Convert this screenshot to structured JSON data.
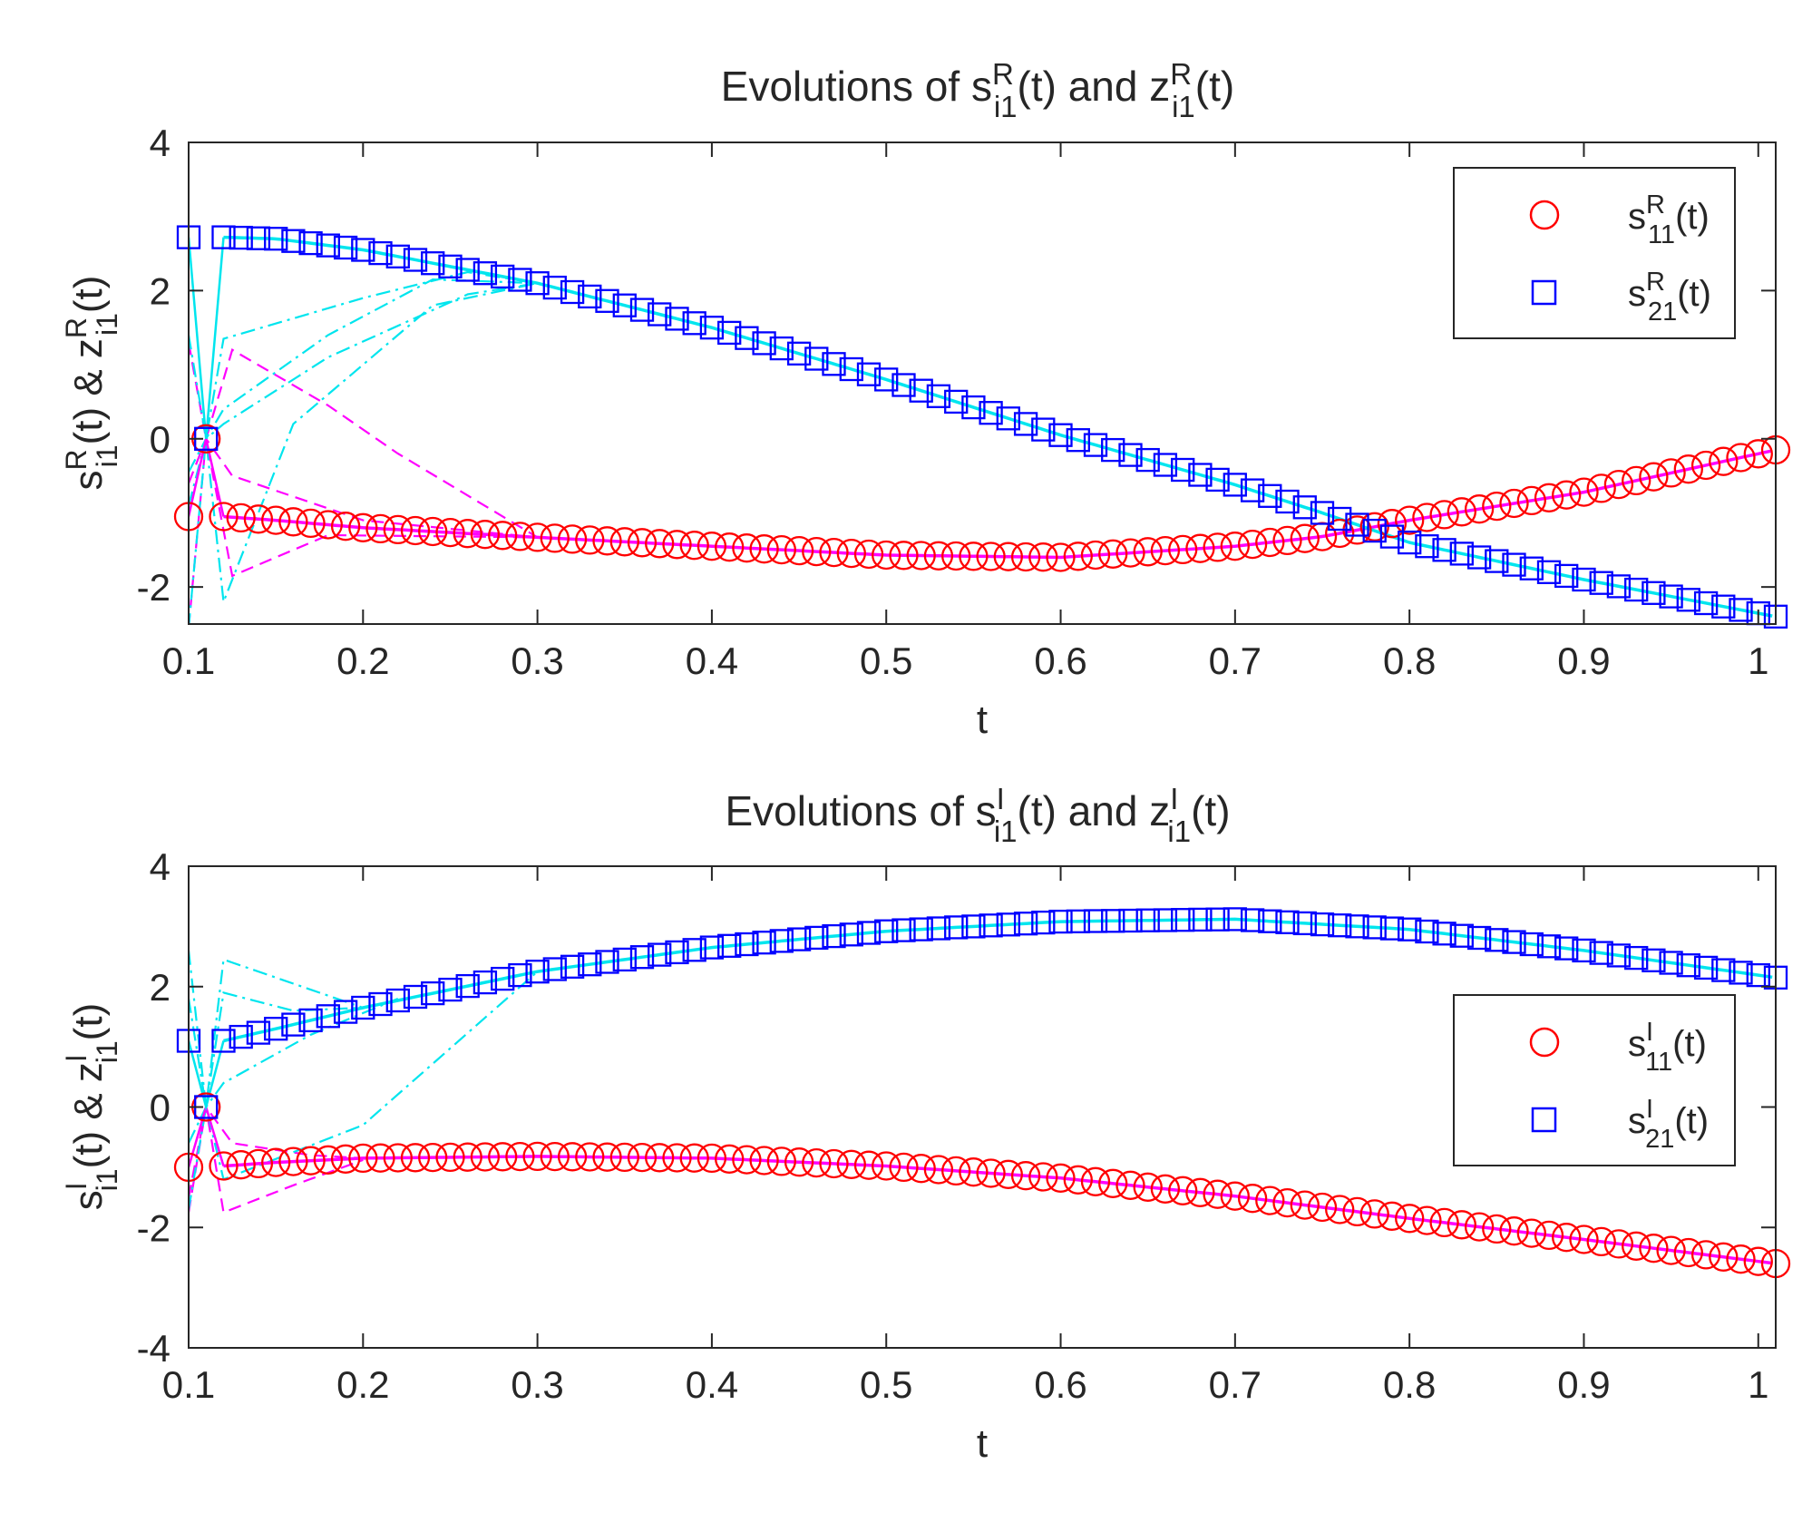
{
  "colors": {
    "s11": "#ff0000",
    "s21": "#0000ff",
    "z_re": "#ff00ff",
    "z_im": "#00e5ee",
    "axis": "#262626"
  },
  "chart_data": [
    {
      "type": "line",
      "title": {
        "prefix": "Evolutions of s",
        "sup1": "R",
        "sub1": "i1",
        "mid": "(t) and z",
        "sup2": "R",
        "sub2": "i1",
        "suffix": "(t)"
      },
      "xlabel": "t",
      "ylabel": {
        "s": "s",
        "sup1": "R",
        "sub1": "i1",
        "mid": "(t) & z",
        "sup2": "R",
        "sub2": "i1",
        "suffix": "(t)"
      },
      "xlim": [
        0.1,
        1.01
      ],
      "ylim": [
        -2.5,
        4
      ],
      "xticks": [
        "0.1",
        "0.2",
        "0.3",
        "0.4",
        "0.5",
        "0.6",
        "0.7",
        "0.8",
        "0.9",
        "1"
      ],
      "yticks": [
        "-2",
        "0",
        "2",
        "4"
      ],
      "legend": {
        "position": "top-right",
        "entries": [
          {
            "marker": "circle",
            "label": {
              "s": "s",
              "sup": "R",
              "sub": "11",
              "suffix": "(t)"
            }
          },
          {
            "marker": "square",
            "label": {
              "s": "s",
              "sup": "R",
              "sub": "21",
              "suffix": "(t)"
            }
          }
        ]
      },
      "series": [
        {
          "name": "s11",
          "marker": "circle",
          "points": [
            [
              0.1,
              -1.05
            ],
            [
              0.11,
              0.0
            ],
            [
              0.12,
              -1.05
            ],
            [
              0.15,
              -1.1
            ],
            [
              0.2,
              -1.2
            ],
            [
              0.3,
              -1.33
            ],
            [
              0.4,
              -1.45
            ],
            [
              0.5,
              -1.57
            ],
            [
              0.6,
              -1.6
            ],
            [
              0.7,
              -1.45
            ],
            [
              0.75,
              -1.32
            ],
            [
              0.8,
              -1.1
            ],
            [
              0.9,
              -0.72
            ],
            [
              1.01,
              -0.15
            ]
          ]
        },
        {
          "name": "s21",
          "marker": "square",
          "points": [
            [
              0.1,
              2.72
            ],
            [
              0.11,
              0.0
            ],
            [
              0.12,
              2.72
            ],
            [
              0.15,
              2.7
            ],
            [
              0.2,
              2.55
            ],
            [
              0.3,
              2.1
            ],
            [
              0.4,
              1.5
            ],
            [
              0.5,
              0.8
            ],
            [
              0.6,
              0.05
            ],
            [
              0.7,
              -0.62
            ],
            [
              0.75,
              -1.0
            ],
            [
              0.8,
              -1.4
            ],
            [
              0.9,
              -1.9
            ],
            [
              1.01,
              -2.4
            ]
          ]
        },
        {
          "name": "z_re_traj",
          "style": "dashed",
          "color": "magenta",
          "points": [
            [
              [
                0.1,
                1.3
              ],
              [
                0.11,
                0.0
              ],
              [
                0.125,
                1.2
              ],
              [
                0.18,
                0.45
              ],
              [
                0.22,
                -0.2
              ],
              [
                0.3,
                -1.33
              ]
            ],
            [
              [
                0.1,
                -2.55
              ],
              [
                0.11,
                0.0
              ],
              [
                0.125,
                -1.85
              ],
              [
                0.18,
                -1.3
              ],
              [
                0.3,
                -1.33
              ]
            ],
            [
              [
                0.1,
                -0.6
              ],
              [
                0.11,
                0.0
              ],
              [
                0.125,
                -0.5
              ],
              [
                0.2,
                -1.1
              ],
              [
                0.3,
                -1.33
              ]
            ]
          ]
        },
        {
          "name": "z_im_traj",
          "style": "dashdot",
          "color": "cyan",
          "points": [
            [
              [
                0.1,
                1.4
              ],
              [
                0.11,
                0.0
              ],
              [
                0.12,
                1.35
              ],
              [
                0.2,
                1.9
              ],
              [
                0.26,
                2.25
              ],
              [
                0.3,
                2.1
              ]
            ],
            [
              [
                0.1,
                -2.55
              ],
              [
                0.11,
                0.0
              ],
              [
                0.12,
                -2.2
              ],
              [
                0.16,
                0.2
              ],
              [
                0.24,
                1.8
              ],
              [
                0.3,
                2.1
              ]
            ],
            [
              [
                0.1,
                -0.45
              ],
              [
                0.11,
                0.0
              ],
              [
                0.12,
                0.4
              ],
              [
                0.18,
                1.4
              ],
              [
                0.24,
                2.15
              ],
              [
                0.3,
                2.1
              ]
            ],
            [
              [
                0.1,
                -0.9
              ],
              [
                0.11,
                0.0
              ],
              [
                0.12,
                0.2
              ],
              [
                0.18,
                1.1
              ],
              [
                0.26,
                1.95
              ],
              [
                0.3,
                2.1
              ]
            ]
          ]
        }
      ]
    },
    {
      "type": "line",
      "title": {
        "prefix": "Evolutions of s",
        "sup1": "I",
        "sub1": "i1",
        "mid": "(t) and z",
        "sup2": "I",
        "sub2": "i1",
        "suffix": "(t)"
      },
      "xlabel": "t",
      "ylabel": {
        "s": "s",
        "sup1": "I",
        "sub1": "i1",
        "mid": "(t) & z",
        "sup2": "I",
        "sub2": "i1",
        "suffix": "(t)"
      },
      "xlim": [
        0.1,
        1.01
      ],
      "ylim": [
        -4,
        4
      ],
      "xticks": [
        "0.1",
        "0.2",
        "0.3",
        "0.4",
        "0.5",
        "0.6",
        "0.7",
        "0.8",
        "0.9",
        "1"
      ],
      "yticks": [
        "-4",
        "-2",
        "0",
        "2",
        "4"
      ],
      "legend": {
        "position": "right",
        "entries": [
          {
            "marker": "circle",
            "label": {
              "s": "s",
              "sup": "I",
              "sub": "11",
              "suffix": "(t)"
            }
          },
          {
            "marker": "square",
            "label": {
              "s": "s",
              "sup": "I",
              "sub": "21",
              "suffix": "(t)"
            }
          }
        ]
      },
      "series": [
        {
          "name": "s11",
          "marker": "circle",
          "points": [
            [
              0.1,
              -1.0
            ],
            [
              0.11,
              0.0
            ],
            [
              0.12,
              -0.98
            ],
            [
              0.15,
              -0.92
            ],
            [
              0.2,
              -0.85
            ],
            [
              0.3,
              -0.82
            ],
            [
              0.4,
              -0.85
            ],
            [
              0.5,
              -0.98
            ],
            [
              0.6,
              -1.18
            ],
            [
              0.7,
              -1.48
            ],
            [
              0.8,
              -1.85
            ],
            [
              0.9,
              -2.2
            ],
            [
              1.01,
              -2.6
            ]
          ]
        },
        {
          "name": "s21",
          "marker": "square",
          "points": [
            [
              0.1,
              1.1
            ],
            [
              0.11,
              0.0
            ],
            [
              0.12,
              1.1
            ],
            [
              0.15,
              1.3
            ],
            [
              0.2,
              1.65
            ],
            [
              0.3,
              2.25
            ],
            [
              0.4,
              2.65
            ],
            [
              0.5,
              2.92
            ],
            [
              0.6,
              3.08
            ],
            [
              0.7,
              3.12
            ],
            [
              0.8,
              2.95
            ],
            [
              0.9,
              2.6
            ],
            [
              1.01,
              2.15
            ]
          ]
        },
        {
          "name": "z_re_traj",
          "style": "dashed",
          "color": "magenta",
          "points": [
            [
              [
                0.1,
                -1.75
              ],
              [
                0.11,
                0.0
              ],
              [
                0.12,
                -1.75
              ],
              [
                0.16,
                -1.3
              ],
              [
                0.2,
                -0.88
              ]
            ],
            [
              [
                0.1,
                -1.5
              ],
              [
                0.11,
                0.0
              ],
              [
                0.125,
                -0.6
              ],
              [
                0.17,
                -0.8
              ],
              [
                0.2,
                -0.85
              ]
            ]
          ]
        },
        {
          "name": "z_im_traj",
          "style": "dashdot",
          "color": "cyan",
          "points": [
            [
              [
                0.1,
                2.6
              ],
              [
                0.11,
                0.0
              ],
              [
                0.12,
                2.45
              ],
              [
                0.15,
                2.15
              ],
              [
                0.2,
                1.65
              ]
            ],
            [
              [
                0.1,
                1.8
              ],
              [
                0.11,
                0.0
              ],
              [
                0.12,
                1.9
              ],
              [
                0.16,
                1.6
              ],
              [
                0.2,
                1.65
              ]
            ],
            [
              [
                0.1,
                -1.7
              ],
              [
                0.11,
                0.0
              ],
              [
                0.12,
                -1.2
              ],
              [
                0.2,
                -0.3
              ],
              [
                0.3,
                2.25
              ]
            ],
            [
              [
                0.1,
                -0.6
              ],
              [
                0.11,
                0.0
              ],
              [
                0.12,
                0.4
              ],
              [
                0.17,
                1.2
              ],
              [
                0.22,
                1.8
              ]
            ]
          ]
        }
      ]
    }
  ]
}
